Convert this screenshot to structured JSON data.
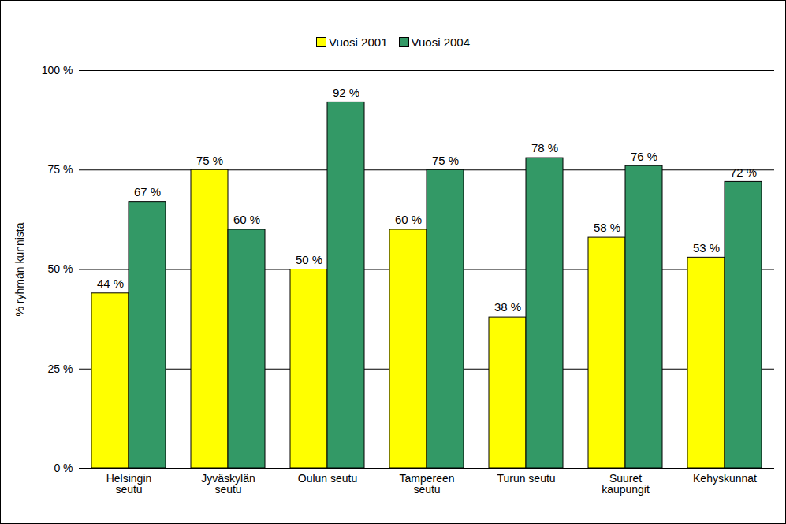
{
  "chart_data": {
    "type": "bar",
    "categories": [
      "Helsingin\nseutu",
      "Jyväskylän\nseutu",
      "Oulun seutu",
      "Tampereen\nseutu",
      "Turun seutu",
      "Suuret\nkaupungit",
      "Kehyskunnat"
    ],
    "series": [
      {
        "name": "Vuosi 2001",
        "color": "#ffff00",
        "values": [
          44,
          75,
          50,
          60,
          38,
          58,
          53
        ],
        "value_labels": [
          "44 %",
          "75 %",
          "50 %",
          "60 %",
          "38 %",
          "58 %",
          "53 %"
        ]
      },
      {
        "name": "Vuosi 2004",
        "color": "#339966",
        "values": [
          67,
          60,
          92,
          75,
          78,
          76,
          72
        ],
        "value_labels": [
          "67 %",
          "60 %",
          "92 %",
          "75 %",
          "78 %",
          "76 %",
          "72 %"
        ]
      }
    ],
    "y_label": "% ryhmän kunnista",
    "ylim": [
      0,
      100
    ],
    "yticks": [
      {
        "value": 0,
        "label": "0 %"
      },
      {
        "value": 25,
        "label": "25 %"
      },
      {
        "value": 50,
        "label": "50 %"
      },
      {
        "value": 75,
        "label": "75 %"
      },
      {
        "value": 100,
        "label": "100 %"
      }
    ],
    "grid": true,
    "legend": "top",
    "data_labels": true
  }
}
